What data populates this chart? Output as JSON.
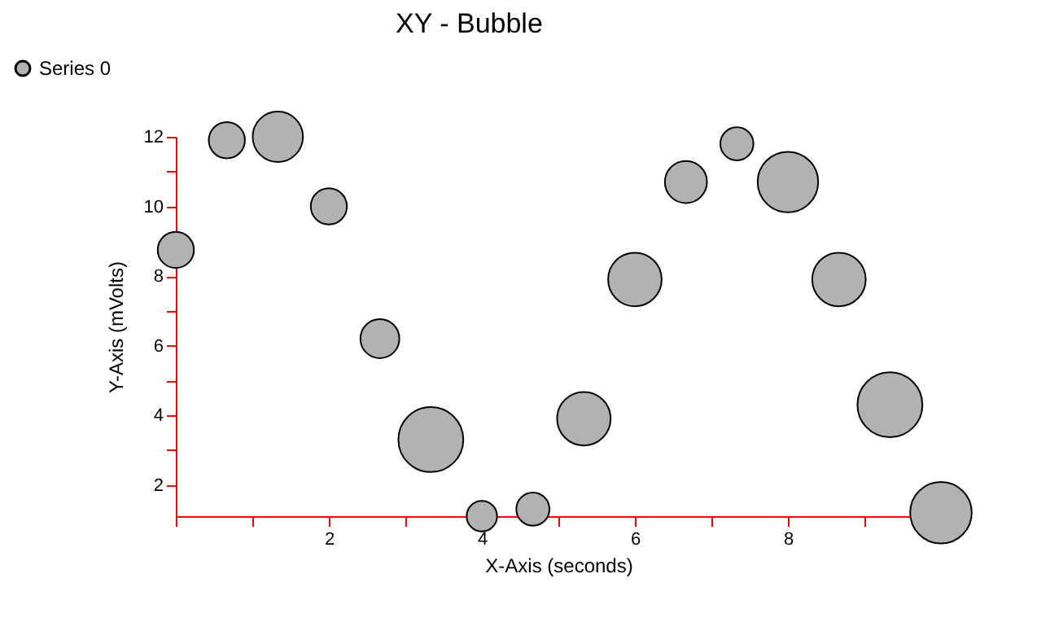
{
  "chart_data": {
    "type": "bubble",
    "title": "XY - Bubble",
    "xlabel": "X-Axis (seconds)",
    "ylabel": "Y-Axis (mVolts)",
    "x": [
      0,
      0.667,
      1.333,
      2,
      2.667,
      3.333,
      4,
      4.667,
      5.333,
      6,
      6.667,
      7.333,
      8,
      8.667,
      9.333,
      10
    ],
    "series": [
      {
        "name": "Series 0",
        "color": "#b2b2b2",
        "values": [
          8.75,
          11.9,
          12.0,
          10.0,
          6.2,
          3.3,
          1.1,
          1.3,
          3.9,
          7.9,
          10.7,
          11.8,
          10.7,
          7.9,
          4.3,
          1.2
        ],
        "sizes": [
          0.31,
          0.31,
          0.6,
          0.31,
          0.36,
          1,
          0.22,
          0.26,
          0.68,
          0.68,
          0.42,
          0.26,
          0.87,
          0.68,
          1,
          0.9
        ]
      }
    ],
    "xlim": [
      0,
      10
    ],
    "ylim": [
      1.1,
      12
    ],
    "xticks": [
      {
        "value": 0,
        "label": null
      },
      {
        "value": 1,
        "label": null
      },
      2,
      {
        "value": 3,
        "label": null
      },
      4,
      {
        "value": 5,
        "label": null
      },
      6,
      {
        "value": 7,
        "label": null
      },
      8,
      {
        "value": 9,
        "label": null
      }
    ],
    "yticks": [
      2,
      {
        "value": 3,
        "label": null
      },
      4,
      {
        "value": 5,
        "label": null
      },
      6,
      {
        "value": 7,
        "label": null
      },
      8,
      {
        "value": 9,
        "label": null
      },
      10,
      {
        "value": 11,
        "label": null
      },
      12
    ],
    "grid": false,
    "legend": "top left"
  }
}
